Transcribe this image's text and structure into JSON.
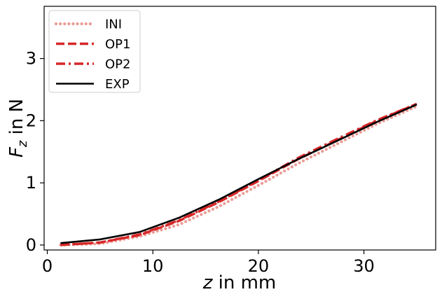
{
  "chart_data": {
    "type": "line",
    "xlabel": {
      "var": "z",
      "rest": " in mm"
    },
    "ylabel": {
      "var": "F",
      "sub": "z",
      "rest": " in N"
    },
    "xlim": [
      -0.3,
      36.8
    ],
    "ylim": [
      -0.08,
      3.84
    ],
    "xticks": [
      0,
      10,
      20,
      30
    ],
    "yticks": [
      0,
      1,
      2,
      3
    ],
    "legend_position": "top-left",
    "series": [
      {
        "name": "INI",
        "color": "#eb9c96",
        "dash": "dotted",
        "x": [
          1.25,
          5,
          8.75,
          12.5,
          16.25,
          20,
          23.75,
          27.5,
          31.25,
          35.0
        ],
        "y": [
          0.0,
          0.02,
          0.14,
          0.33,
          0.62,
          0.96,
          1.31,
          1.63,
          1.95,
          2.23
        ]
      },
      {
        "name": "OP1",
        "color": "#d62728",
        "dash": "dashed",
        "x": [
          1.25,
          5,
          8.75,
          12.5,
          16.25,
          20,
          23.75,
          27.5,
          31.25,
          35.0
        ],
        "y": [
          0.0,
          0.04,
          0.16,
          0.39,
          0.69,
          1.03,
          1.38,
          1.69,
          2.0,
          2.27
        ]
      },
      {
        "name": "OP2",
        "color": "#d62728",
        "dash": "dashdot",
        "x": [
          1.25,
          5,
          8.75,
          12.5,
          16.25,
          20,
          23.75,
          27.5,
          31.25,
          35.0
        ],
        "y": [
          0.0,
          0.04,
          0.17,
          0.4,
          0.7,
          1.04,
          1.4,
          1.71,
          2.01,
          2.27
        ]
      },
      {
        "name": "EXP",
        "color": "#000000",
        "dash": "solid",
        "x": [
          1.25,
          5,
          8.75,
          12.5,
          16.25,
          20,
          23.75,
          27.5,
          31.25,
          35.0
        ],
        "y": [
          0.03,
          0.09,
          0.21,
          0.44,
          0.73,
          1.06,
          1.38,
          1.68,
          1.98,
          2.26
        ]
      }
    ]
  }
}
